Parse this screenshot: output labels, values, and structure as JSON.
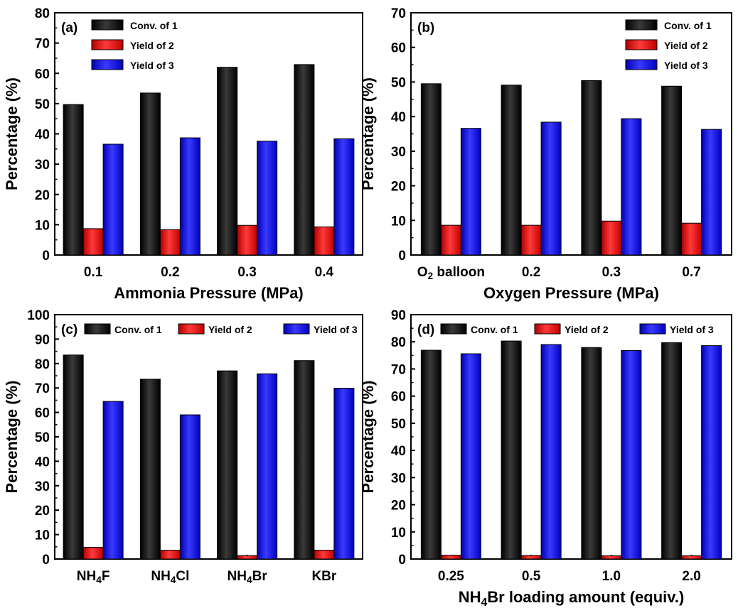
{
  "colors": {
    "conv": "#000000",
    "yield2": "#ff0000",
    "yield3": "#0000ff"
  },
  "legend_labels": [
    "Conv. of 1",
    "Yield of 2",
    "Yield of 3"
  ],
  "chart_data": [
    {
      "type": "bar",
      "panel_label": "(a)",
      "xlabel": "Ammonia Pressure (MPa)",
      "ylabel": "Percentage (%)",
      "ylim": [
        0,
        80
      ],
      "yticks": [
        0,
        10,
        20,
        30,
        40,
        50,
        60,
        70,
        80
      ],
      "categories": [
        "0.1",
        "0.2",
        "0.3",
        "0.4"
      ],
      "legend_position": "top-left",
      "series": [
        {
          "name": "Conv. of 1",
          "values": [
            49.7,
            53.5,
            62.0,
            62.9
          ]
        },
        {
          "name": "Yield of 2",
          "values": [
            8.7,
            8.4,
            9.8,
            9.3
          ]
        },
        {
          "name": "Yield of 3",
          "values": [
            36.6,
            38.7,
            37.6,
            38.4
          ]
        }
      ]
    },
    {
      "type": "bar",
      "panel_label": "(b)",
      "xlabel": "Oxygen Pressure (MPa)",
      "ylabel": "Percentage (%)",
      "ylim": [
        0,
        70
      ],
      "yticks": [
        0,
        10,
        20,
        30,
        40,
        50,
        60,
        70
      ],
      "categories": [
        "O2 balloon",
        "0.2",
        "0.3",
        "0.7"
      ],
      "legend_position": "top-right",
      "series": [
        {
          "name": "Conv. of 1",
          "values": [
            49.5,
            49.1,
            50.4,
            48.8
          ]
        },
        {
          "name": "Yield of 2",
          "values": [
            8.6,
            8.6,
            9.8,
            9.2
          ]
        },
        {
          "name": "Yield of 3",
          "values": [
            36.6,
            38.4,
            39.4,
            36.3
          ]
        }
      ]
    },
    {
      "type": "bar",
      "panel_label": "(c)",
      "xlabel": "",
      "ylabel": "Percentage (%)",
      "ylim": [
        0,
        100
      ],
      "yticks": [
        0,
        10,
        20,
        30,
        40,
        50,
        60,
        70,
        80,
        90,
        100
      ],
      "categories": [
        "NH4F",
        "NH4Cl",
        "NH4Br",
        "KBr"
      ],
      "legend_position": "top-horizontal",
      "series": [
        {
          "name": "Conv. of 1",
          "values": [
            83.5,
            73.6,
            77.0,
            81.2
          ]
        },
        {
          "name": "Yield of 2",
          "values": [
            4.8,
            3.6,
            1.4,
            3.6
          ]
        },
        {
          "name": "Yield of 3",
          "values": [
            64.5,
            59.0,
            75.8,
            69.9
          ]
        }
      ]
    },
    {
      "type": "bar",
      "panel_label": "(d)",
      "xlabel": "NH4Br loading amount (equiv.)",
      "ylabel": "Percentage (%)",
      "ylim": [
        0,
        90
      ],
      "yticks": [
        0,
        10,
        20,
        30,
        40,
        50,
        60,
        70,
        80,
        90
      ],
      "categories": [
        "0.25",
        "0.5",
        "1.0",
        "2.0"
      ],
      "legend_position": "top-horizontal",
      "series": [
        {
          "name": "Conv. of 1",
          "values": [
            76.9,
            80.3,
            77.9,
            79.7
          ]
        },
        {
          "name": "Yield of 2",
          "values": [
            1.4,
            1.3,
            1.2,
            1.2
          ]
        },
        {
          "name": "Yield of 3",
          "values": [
            75.6,
            79.0,
            76.8,
            78.6
          ]
        }
      ]
    }
  ]
}
